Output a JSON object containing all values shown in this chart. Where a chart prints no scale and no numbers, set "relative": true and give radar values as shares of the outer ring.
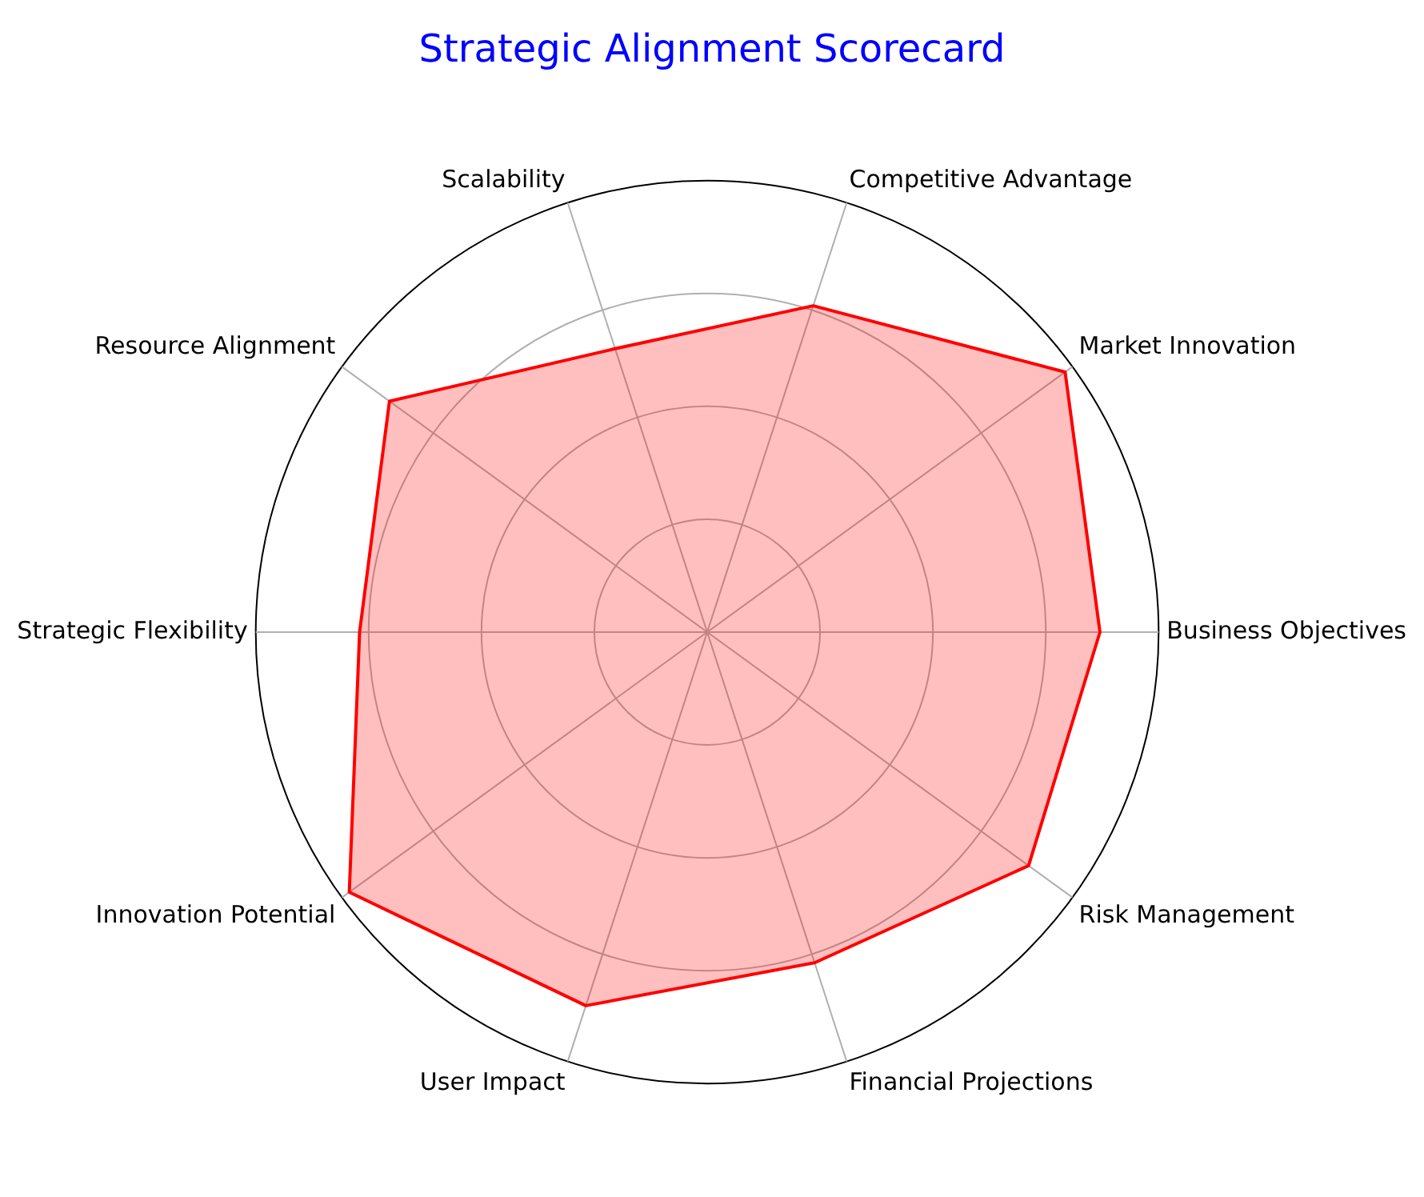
{
  "chart_data": {
    "type": "radar",
    "title": "Strategic Alignment Scorecard",
    "relative": true,
    "grid": true,
    "categories": [
      "Competitive Advantage",
      "Market Innovation",
      "Business Objectives",
      "Risk Management",
      "Financial Projections",
      "User Impact",
      "Innovation Potential",
      "Strategic Flexibility",
      "Resource Alignment",
      "Scalability"
    ],
    "series": [
      {
        "color": "#ff0000",
        "values": [
          0.76,
          0.98,
          0.87,
          0.88,
          0.77,
          0.87,
          0.98,
          0.77,
          0.87,
          0.66
        ]
      }
    ]
  }
}
